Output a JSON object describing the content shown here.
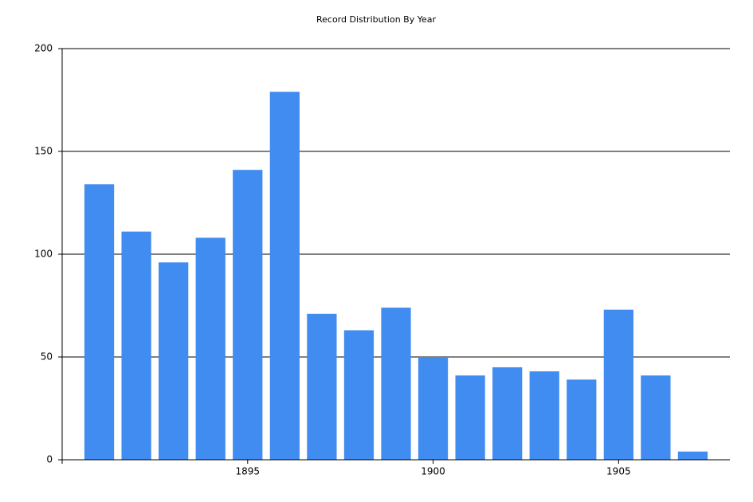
{
  "chart_data": {
    "type": "bar",
    "title": "Record Distribution By Year",
    "x": [
      1891,
      1892,
      1893,
      1894,
      1895,
      1896,
      1897,
      1898,
      1899,
      1900,
      1901,
      1902,
      1903,
      1904,
      1905,
      1906,
      1907
    ],
    "values": [
      134,
      111,
      96,
      108,
      141,
      179,
      71,
      63,
      74,
      50,
      41,
      45,
      43,
      39,
      73,
      41,
      4
    ],
    "color": "#418cf0",
    "xlim": [
      1890,
      1908
    ],
    "xticks": [
      1895,
      1900,
      1905
    ],
    "ylim": [
      0,
      200
    ],
    "yticks": [
      0,
      50,
      100,
      150,
      200
    ],
    "grid": true
  }
}
